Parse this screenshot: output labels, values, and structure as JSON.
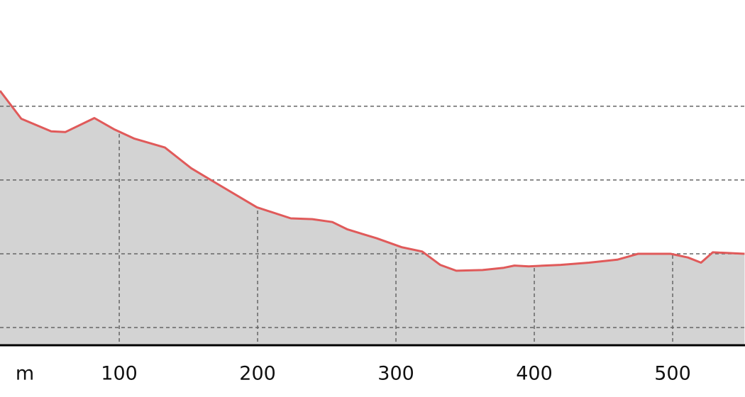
{
  "chart_data": {
    "type": "area",
    "xlabel": "m",
    "x": [
      13.8,
      29.2,
      50.8,
      61,
      82,
      96,
      111,
      133,
      152,
      168,
      199.5,
      224,
      239.5,
      254,
      265,
      286,
      304,
      319,
      332,
      343.6,
      362.6,
      378,
      385.6,
      396,
      419,
      439.5,
      460,
      475,
      498.5,
      511,
      520.5,
      529,
      552
    ],
    "values": [
      42.1,
      38.3,
      36.6,
      36.5,
      38.4,
      36.9,
      35.6,
      34.4,
      31.6,
      29.8,
      26.3,
      24.8,
      24.7,
      24.3,
      23.3,
      22.1,
      20.9,
      20.3,
      18.5,
      17.7,
      17.8,
      18.1,
      18.4,
      18.3,
      18.5,
      18.8,
      19.2,
      20.0,
      20.0,
      19.5,
      18.8,
      20.2,
      20.0
    ],
    "color": "#e05a5a",
    "fill": "#d3d3d3",
    "xlim": [
      13.8,
      552.3
    ],
    "xticks": [
      100,
      200,
      300,
      400,
      500
    ],
    "ylim": [
      7.6,
      54.4
    ],
    "ygrid": [
      10,
      20,
      30,
      40
    ],
    "grid": true
  }
}
